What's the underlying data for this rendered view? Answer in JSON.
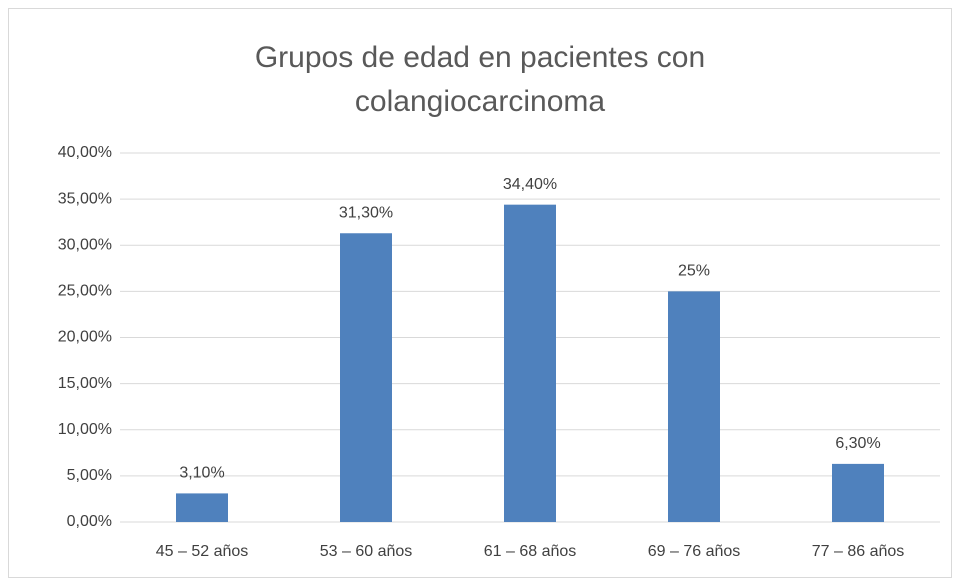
{
  "chart_data": {
    "type": "bar",
    "title": "Grupos de edad en pacientes con colangiocarcinoma",
    "categories": [
      "45 – 52 años",
      "53 – 60 años",
      "61 – 68 años",
      "69 – 76 años",
      "77 – 86 años"
    ],
    "values": [
      3.1,
      31.3,
      34.4,
      25,
      6.3
    ],
    "value_labels": [
      "3,10%",
      "31,30%",
      "34,40%",
      "25%",
      "6,30%"
    ],
    "color": "#4f81bd",
    "ylim": [
      0,
      40
    ],
    "yticks": [
      {
        "value": 0,
        "label": "0,00%"
      },
      {
        "value": 5,
        "label": "5,00%"
      },
      {
        "value": 10,
        "label": "10,00%"
      },
      {
        "value": 15,
        "label": "15,00%"
      },
      {
        "value": 20,
        "label": "20,00%"
      },
      {
        "value": 25,
        "label": "25,00%"
      },
      {
        "value": 30,
        "label": "30,00%"
      },
      {
        "value": 35,
        "label": "35,00%"
      },
      {
        "value": 40,
        "label": "40,00%"
      }
    ],
    "grid": true
  }
}
